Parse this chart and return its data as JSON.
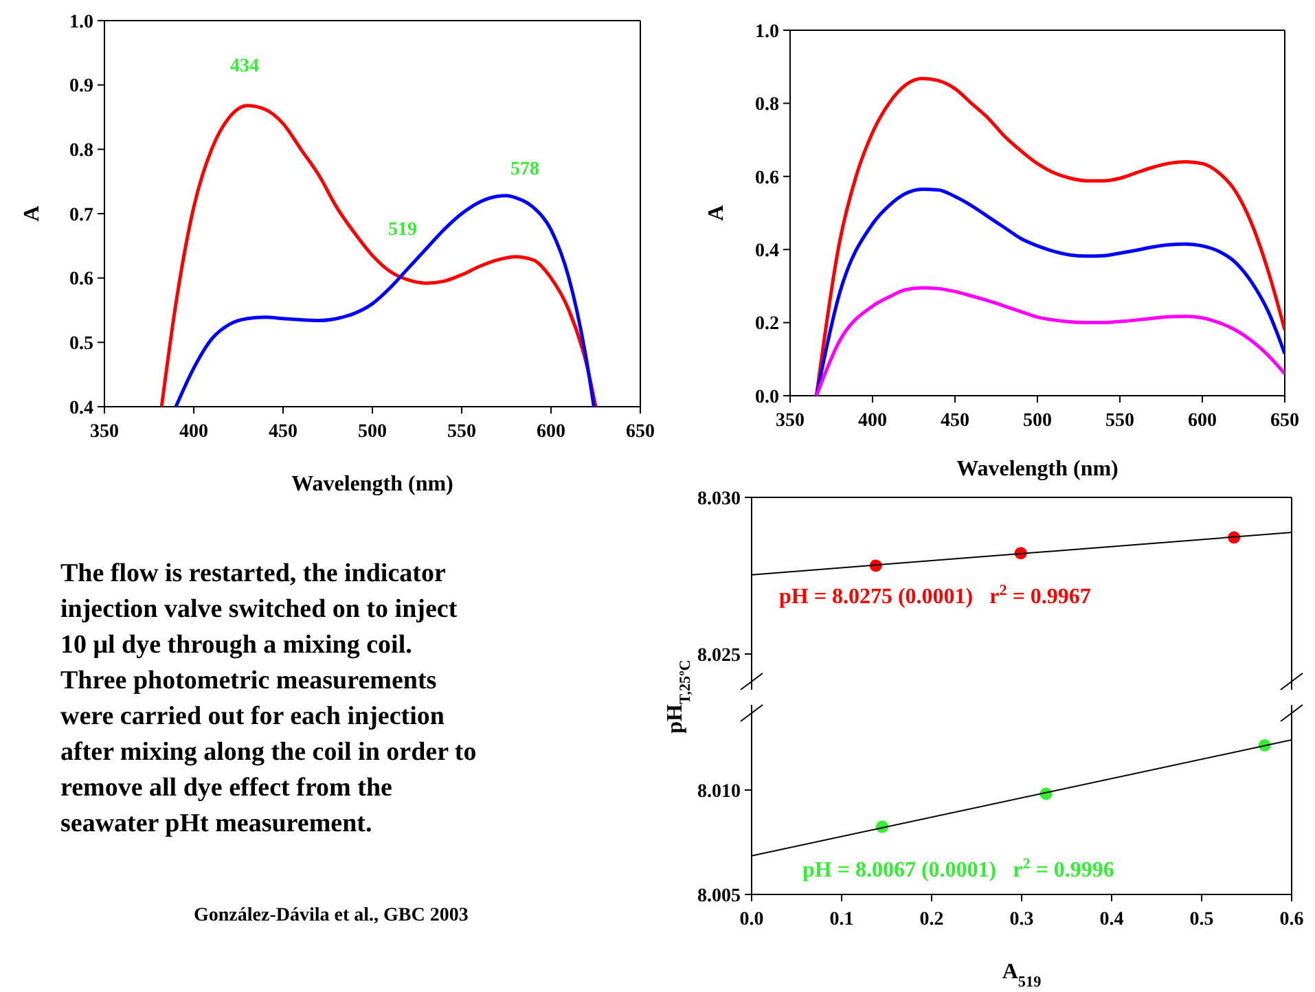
{
  "chart_data": [
    {
      "type": "line",
      "xlabel": "Wavelength (nm)",
      "ylabel": "A",
      "xlim": [
        350,
        650
      ],
      "ylim": [
        0.4,
        1.0
      ],
      "xticks": [
        350,
        400,
        450,
        500,
        550,
        600,
        650
      ],
      "yticks": [
        0.4,
        0.5,
        0.6,
        0.7,
        0.8,
        0.9,
        {
          "value": 1,
          "label": "1.0"
        }
      ],
      "annotations": [
        "434",
        "519",
        "578"
      ],
      "series": [
        {
          "color": "#ff0000",
          "x": [
            382,
            390,
            400,
            410,
            420,
            430,
            440,
            450,
            460,
            470,
            480,
            490,
            500,
            510,
            520,
            530,
            540,
            550,
            560,
            570,
            580,
            590,
            600,
            610,
            620,
            625
          ],
          "values": [
            0.4,
            0.56,
            0.71,
            0.8,
            0.85,
            0.868,
            0.862,
            0.84,
            0.8,
            0.76,
            0.71,
            0.67,
            0.635,
            0.61,
            0.597,
            0.592,
            0.595,
            0.605,
            0.618,
            0.628,
            0.633,
            0.628,
            0.6,
            0.55,
            0.465,
            0.4
          ]
        },
        {
          "color": "#0000ff",
          "x": [
            390,
            400,
            410,
            420,
            430,
            440,
            450,
            460,
            470,
            480,
            490,
            500,
            510,
            520,
            530,
            540,
            550,
            560,
            570,
            575,
            580,
            590,
            600,
            610,
            620,
            624
          ],
          "values": [
            0.4,
            0.46,
            0.505,
            0.528,
            0.537,
            0.539,
            0.537,
            0.535,
            0.534,
            0.537,
            0.545,
            0.56,
            0.585,
            0.615,
            0.645,
            0.675,
            0.7,
            0.718,
            0.727,
            0.728,
            0.725,
            0.71,
            0.675,
            0.6,
            0.47,
            0.4
          ]
        }
      ]
    },
    {
      "type": "line",
      "xlabel": "Wavelength (nm)",
      "ylabel": "A",
      "xlim": [
        350,
        650
      ],
      "ylim": [
        0,
        1
      ],
      "xticks": [
        350,
        400,
        450,
        500,
        550,
        600,
        650
      ],
      "yticks": [
        {
          "value": 0,
          "label": "0.0"
        },
        0.2,
        0.4,
        0.6,
        0.8,
        {
          "value": 1,
          "label": "1.0"
        }
      ],
      "series": [
        {
          "color": "#ff0000",
          "x": [
            366,
            380,
            390,
            400,
            410,
            420,
            430,
            440,
            450,
            460,
            470,
            480,
            490,
            500,
            510,
            520,
            530,
            540,
            550,
            560,
            570,
            580,
            590,
            600,
            610,
            620,
            630,
            640,
            650
          ],
          "values": [
            0,
            0.42,
            0.6,
            0.72,
            0.8,
            0.85,
            0.868,
            0.862,
            0.84,
            0.8,
            0.76,
            0.71,
            0.67,
            0.635,
            0.61,
            0.595,
            0.588,
            0.588,
            0.595,
            0.61,
            0.625,
            0.636,
            0.64,
            0.635,
            0.61,
            0.56,
            0.47,
            0.34,
            0.18
          ]
        },
        {
          "color": "#0000ff",
          "x": [
            366,
            380,
            400,
            410,
            420,
            430,
            440,
            450,
            460,
            470,
            480,
            490,
            500,
            510,
            520,
            530,
            540,
            550,
            560,
            570,
            580,
            590,
            600,
            610,
            620,
            630,
            640,
            650
          ],
          "values": [
            0,
            0.28,
            0.47,
            0.52,
            0.553,
            0.565,
            0.563,
            0.545,
            0.52,
            0.49,
            0.46,
            0.43,
            0.41,
            0.395,
            0.385,
            0.382,
            0.383,
            0.39,
            0.398,
            0.407,
            0.413,
            0.415,
            0.41,
            0.395,
            0.365,
            0.31,
            0.23,
            0.115
          ]
        },
        {
          "color": "#ff00ff",
          "x": [
            366,
            380,
            400,
            410,
            420,
            430,
            440,
            450,
            460,
            470,
            480,
            490,
            500,
            510,
            520,
            530,
            540,
            550,
            560,
            570,
            580,
            590,
            600,
            610,
            620,
            630,
            640,
            650
          ],
          "values": [
            0,
            0.15,
            0.245,
            0.27,
            0.29,
            0.295,
            0.293,
            0.285,
            0.273,
            0.26,
            0.245,
            0.23,
            0.215,
            0.207,
            0.202,
            0.2,
            0.2,
            0.203,
            0.207,
            0.212,
            0.216,
            0.217,
            0.213,
            0.2,
            0.18,
            0.15,
            0.11,
            0.06
          ]
        }
      ]
    },
    {
      "type": "other",
      "annotations": [
        "The flow is restarted, the indicator",
        "injection valve switched on to inject",
        "10 μl dye through a mixing coil.",
        "Three photometric measurements",
        "were carried out for each injection",
        "after mixing along the coil in order to",
        "remove all dye effect from the",
        "seawater pHt measurement.",
        "González-Dávila et al., GBC 2003"
      ]
    },
    {
      "type": "scatter",
      "xlim": [
        0,
        0.6
      ],
      "ylim": [
        8.02386,
        8.03
      ],
      "yticks": [
        8.025,
        {
          "value": 8.03,
          "label": "8.030"
        }
      ],
      "tick_labels": "y",
      "annotations": [
        "pH = 8.0275 (0.0001)   r$^{2}$ = 0.9967"
      ],
      "series": [
        {
          "type": "scatter",
          "color": "#ff0000",
          "x": [
            0.138,
            0.299,
            0.536
          ],
          "values": [
            8.02782,
            8.02822,
            8.02872
          ]
        },
        {
          "type": "line",
          "color": "#000000",
          "x": [
            0,
            0.6
          ],
          "values": [
            8.02753,
            8.02888
          ]
        }
      ]
    },
    {
      "type": "scatter",
      "xlabel": "A$_{519}$",
      "ylabel": "pH$_{T,25ºC}$",
      "xlim": [
        0,
        0.6
      ],
      "ylim": [
        8.005,
        8.01408
      ],
      "xticks": [
        {
          "value": 0,
          "label": "0.0"
        },
        0.1,
        0.2,
        0.3,
        0.4,
        0.5,
        0.6
      ],
      "yticks": [
        8.005,
        {
          "value": 8.01,
          "label": "8.010"
        }
      ],
      "annotations": [
        "pH = 8.0067 (0.0001)   r$^{2}$ = 0.9996"
      ],
      "series": [
        {
          "type": "scatter",
          "color": "#33ee33",
          "x": [
            0.145,
            0.327,
            0.57
          ],
          "values": [
            8.00824,
            8.00982,
            8.01214
          ]
        },
        {
          "type": "line",
          "color": "#000000",
          "x": [
            0,
            0.6
          ],
          "values": [
            8.00685,
            8.0124
          ]
        }
      ]
    }
  ]
}
